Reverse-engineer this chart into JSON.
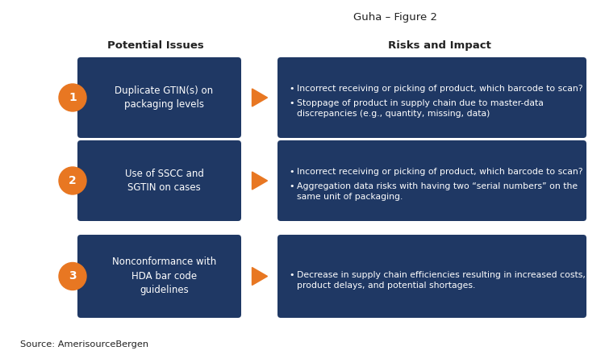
{
  "title": "Guha – Figure 2",
  "col1_header": "Potential Issues",
  "col2_header": "Risks and Impact",
  "source": "Source: AmerisourceBergen",
  "bg_color": "#ffffff",
  "box_color": "#1f3864",
  "arrow_color": "#e87722",
  "circle_color": "#e87722",
  "text_color_white": "#ffffff",
  "text_color_dark": "#222222",
  "rows": [
    {
      "number": "1",
      "issue": "Duplicate GTIN(s) on\npackaging levels",
      "risks": [
        "Incorrect receiving or picking of product, which barcode to scan?",
        "Stoppage of product in supply chain due to master-data\ndiscrepancies (e.g., quantity, missing, data)"
      ]
    },
    {
      "number": "2",
      "issue": "Use of SSCC and\nSGTIN on cases",
      "risks": [
        "Incorrect receiving or picking of product, which barcode to scan?",
        "Aggregation data risks with having two “serial numbers” on the\nsame unit of packaging."
      ]
    },
    {
      "number": "3",
      "issue": "Nonconformance with\nHDA bar code\nguidelines",
      "risks": [
        "Decrease in supply chain efficiencies resulting in increased costs,\nproduct delays, and potential shortages."
      ]
    }
  ],
  "figsize": [
    7.5,
    4.5
  ],
  "dpi": 100
}
